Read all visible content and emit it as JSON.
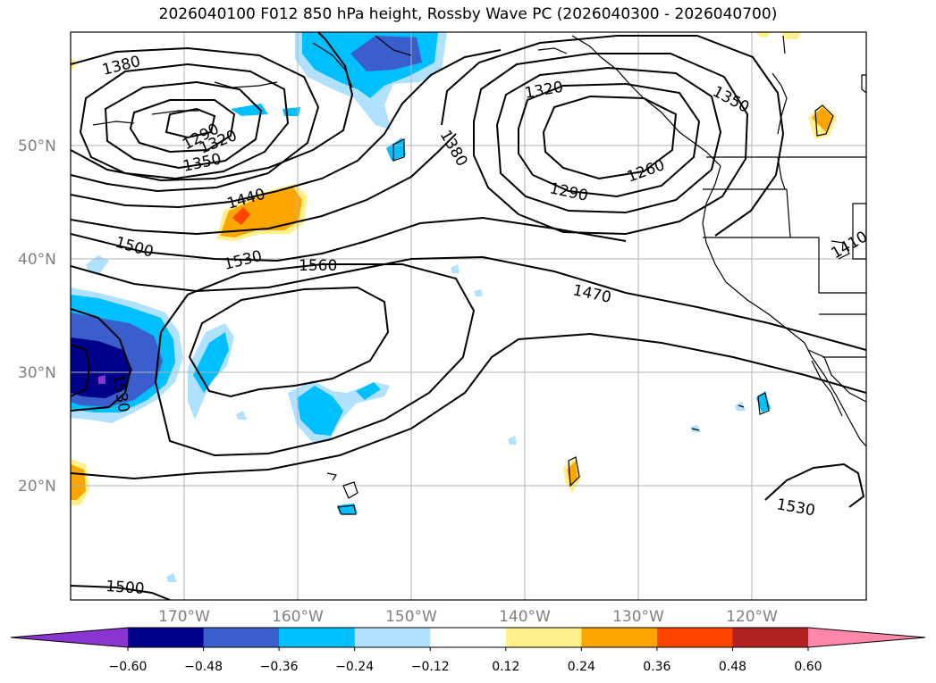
{
  "title": "2026040100 F012 850 hPa height, Rossby Wave PC (2026040300 - 2026040700)",
  "latitude_labels": [
    "50°N",
    "40°N",
    "30°N",
    "20°N"
  ],
  "longitude_labels": [
    "170°W",
    "160°W",
    "150°W",
    "140°W",
    "130°W",
    "120°W"
  ],
  "contour_labels": [
    "1380",
    "1290",
    "1320",
    "1350",
    "1440",
    "1500",
    "1530",
    "1560",
    "1380",
    "1320",
    "1290",
    "1260",
    "1350",
    "1470",
    "1530",
    "1500",
    "1410",
    "1530"
  ],
  "colorbar": {
    "ticks": [
      "−0.60",
      "−0.48",
      "−0.36",
      "−0.24",
      "−0.12",
      "0.12",
      "0.24",
      "0.36",
      "0.48",
      "0.60"
    ],
    "colors": [
      "#8b35d1",
      "#00008b",
      "#3a5fcd",
      "#00bfff",
      "#b0e2ff",
      "#ffffff",
      "#fff08c",
      "#ffa500",
      "#ff4500",
      "#b22222",
      "#ff88aa"
    ]
  },
  "colors": {
    "contour": "#000000",
    "coast": "#000000",
    "grid": "#b3b3b3",
    "label_grey": "#808080"
  }
}
